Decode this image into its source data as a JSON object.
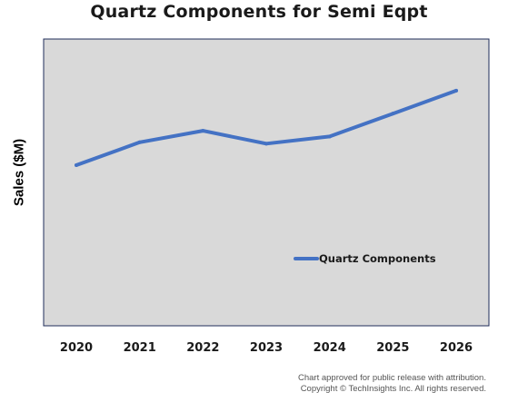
{
  "chart_data": {
    "type": "line",
    "title": "Quartz Components for Semi Eqpt",
    "xlabel": "",
    "ylabel": "Sales ($M)",
    "categories": [
      "2020",
      "2021",
      "2022",
      "2023",
      "2024",
      "2025",
      "2026"
    ],
    "series": [
      {
        "name": "Quartz Components",
        "color": "#4472c4",
        "values": [
          56,
          64,
          68,
          63.5,
          66,
          74,
          82
        ]
      }
    ],
    "ylim": [
      0,
      100
    ],
    "y_tick_labels_shown": false,
    "grid": false,
    "legend": "center-right, inside plot",
    "plot_background": "#d9d9d9"
  },
  "footnote": {
    "line1": "Chart approved for public release with attribution.",
    "line2": "Copyright © TechInsights Inc.  All rights reserved."
  }
}
